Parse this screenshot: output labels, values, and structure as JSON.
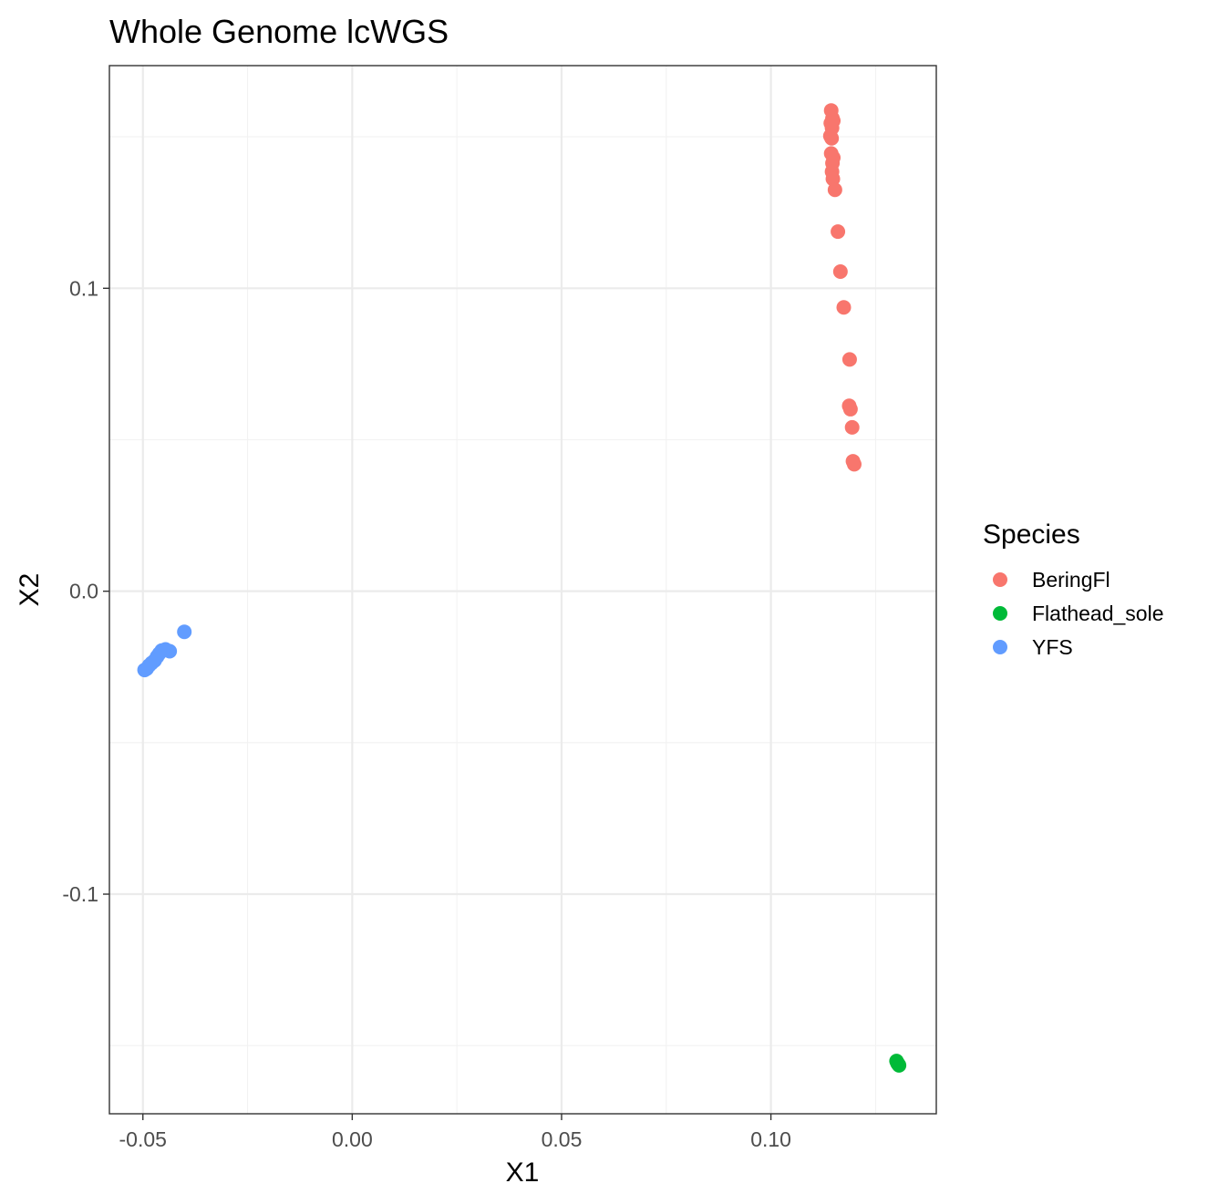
{
  "chart_data": {
    "type": "scatter",
    "title": "Whole Genome lcWGS",
    "xlabel": "X1",
    "ylabel": "X2",
    "xlim": [
      -0.058,
      0.1395
    ],
    "ylim": [
      -0.1725,
      0.1735
    ],
    "x_ticks": [
      {
        "value": -0.05,
        "label": "-0.05"
      },
      {
        "value": 0.0,
        "label": "0.00"
      },
      {
        "value": 0.05,
        "label": "0.05"
      },
      {
        "value": 0.1,
        "label": "0.10"
      }
    ],
    "y_ticks": [
      {
        "value": 0.1,
        "label": "0.1"
      },
      {
        "value": 0.0,
        "label": "0.0"
      },
      {
        "value": -0.1,
        "label": "-0.1"
      }
    ],
    "x_minor": [
      -0.025,
      0.025,
      0.075,
      0.125
    ],
    "y_minor": [
      0.15,
      0.05,
      -0.05,
      -0.15
    ],
    "grid": true,
    "legend": {
      "title": "Species",
      "position": "right"
    },
    "series": [
      {
        "name": "BeringFl",
        "color": "#F8766D",
        "points": [
          {
            "x": 0.1144,
            "y": 0.1587
          },
          {
            "x": 0.1147,
            "y": 0.1561
          },
          {
            "x": 0.1149,
            "y": 0.1553
          },
          {
            "x": 0.1143,
            "y": 0.1545
          },
          {
            "x": 0.1146,
            "y": 0.1529
          },
          {
            "x": 0.1142,
            "y": 0.1503
          },
          {
            "x": 0.1145,
            "y": 0.1495
          },
          {
            "x": 0.1144,
            "y": 0.1445
          },
          {
            "x": 0.1149,
            "y": 0.1431
          },
          {
            "x": 0.1147,
            "y": 0.1413
          },
          {
            "x": 0.1146,
            "y": 0.1385
          },
          {
            "x": 0.1148,
            "y": 0.1361
          },
          {
            "x": 0.1153,
            "y": 0.1325
          },
          {
            "x": 0.116,
            "y": 0.1187
          },
          {
            "x": 0.1166,
            "y": 0.1055
          },
          {
            "x": 0.1174,
            "y": 0.0937
          },
          {
            "x": 0.1188,
            "y": 0.0765
          },
          {
            "x": 0.1187,
            "y": 0.0612
          },
          {
            "x": 0.119,
            "y": 0.0601
          },
          {
            "x": 0.1194,
            "y": 0.0541
          },
          {
            "x": 0.1196,
            "y": 0.0429
          },
          {
            "x": 0.1199,
            "y": 0.0419
          }
        ]
      },
      {
        "name": "Flathead_sole",
        "color": "#00BA38",
        "points": [
          {
            "x": 0.13,
            "y": -0.1551
          },
          {
            "x": 0.1302,
            "y": -0.1557
          },
          {
            "x": 0.1304,
            "y": -0.1561
          },
          {
            "x": 0.1306,
            "y": -0.1565
          },
          {
            "x": 0.1303,
            "y": -0.1559
          }
        ]
      },
      {
        "name": "YFS",
        "color": "#619CFF",
        "points": [
          {
            "x": -0.0401,
            "y": -0.0134
          },
          {
            "x": -0.0446,
            "y": -0.0192
          },
          {
            "x": -0.0436,
            "y": -0.0198
          },
          {
            "x": -0.0455,
            "y": -0.0196
          },
          {
            "x": -0.0461,
            "y": -0.0206
          },
          {
            "x": -0.0466,
            "y": -0.0216
          },
          {
            "x": -0.0472,
            "y": -0.0229
          },
          {
            "x": -0.0479,
            "y": -0.0237
          },
          {
            "x": -0.0485,
            "y": -0.0245
          },
          {
            "x": -0.0491,
            "y": -0.0256
          },
          {
            "x": -0.0496,
            "y": -0.026
          }
        ]
      }
    ]
  }
}
